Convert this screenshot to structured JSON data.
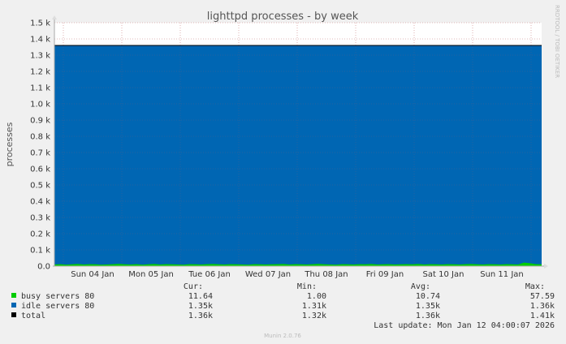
{
  "chart_data": {
    "type": "area",
    "title": "lighttpd processes - by week",
    "ylabel": "processes",
    "side_label": "RRDTOOL / TOBI OETIKER",
    "footer": "Munin 2.0.76",
    "ylim": [
      0,
      1500
    ],
    "y_ticks": [
      {
        "value": 0,
        "label": "0.0"
      },
      {
        "value": 100,
        "label": "0.1 k"
      },
      {
        "value": 200,
        "label": "0.2 k"
      },
      {
        "value": 300,
        "label": "0.3 k"
      },
      {
        "value": 400,
        "label": "0.4 k"
      },
      {
        "value": 500,
        "label": "0.5 k"
      },
      {
        "value": 600,
        "label": "0.6 k"
      },
      {
        "value": 700,
        "label": "0.7 k"
      },
      {
        "value": 800,
        "label": "0.8 k"
      },
      {
        "value": 900,
        "label": "0.9 k"
      },
      {
        "value": 1000,
        "label": "1.0 k"
      },
      {
        "value": 1100,
        "label": "1.1 k"
      },
      {
        "value": 1200,
        "label": "1.2 k"
      },
      {
        "value": 1300,
        "label": "1.3 k"
      },
      {
        "value": 1400,
        "label": "1.4 k"
      },
      {
        "value": 1500,
        "label": "1.5 k"
      }
    ],
    "x_ticks": [
      "Sun 04 Jan",
      "Mon 05 Jan",
      "Tue 06 Jan",
      "Wed 07 Jan",
      "Thu 08 Jan",
      "Fri 09 Jan",
      "Sat 10 Jan",
      "Sun 11 Jan"
    ],
    "series": [
      {
        "name": "busy servers 80",
        "color": "#00cc00",
        "value": 11.64
      },
      {
        "name": "idle servers 80",
        "color": "#0066b3",
        "value": 1350
      },
      {
        "name": "total",
        "color": "#000000",
        "value": 1360
      }
    ],
    "busy_samples": [
      10,
      12,
      9,
      11,
      13,
      10,
      12,
      11,
      9,
      10,
      12,
      14,
      11,
      10,
      12,
      9,
      11,
      13,
      10,
      12,
      11,
      10,
      9,
      12,
      11,
      10,
      12,
      13,
      11,
      10,
      12,
      11,
      10,
      9,
      12,
      11,
      10,
      11,
      12,
      13,
      10,
      12,
      11,
      10,
      12,
      14,
      11,
      10,
      9,
      12,
      11,
      10,
      12,
      11,
      13,
      10,
      11,
      12,
      10,
      11,
      12,
      11,
      13,
      10,
      12,
      11,
      10,
      12,
      11,
      10,
      12,
      13,
      11,
      10,
      12,
      11,
      10,
      12,
      11,
      10,
      22,
      18,
      12,
      11
    ],
    "legend_headers": {
      "cur": "Cur:",
      "min": "Min:",
      "avg": "Avg:",
      "max": "Max:"
    },
    "legend_rows": [
      {
        "name": "busy servers 80",
        "cur": "11.64",
        "min": "1.00",
        "avg": "10.74",
        "max": "57.59"
      },
      {
        "name": "idle servers 80",
        "cur": "1.35k",
        "min": "1.31k",
        "avg": "1.35k",
        "max": "1.36k"
      },
      {
        "name": "total",
        "cur": "1.36k",
        "min": "1.32k",
        "avg": "1.36k",
        "max": "1.41k"
      }
    ],
    "last_update": "Last update: Mon Jan 12 04:00:07 2026"
  }
}
